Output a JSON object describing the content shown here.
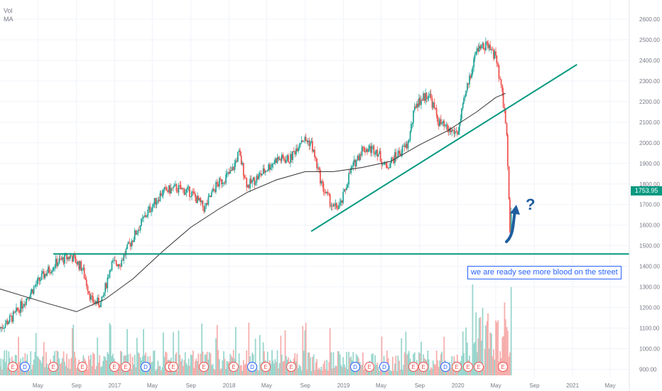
{
  "legend": {
    "line1": "Vol",
    "line2": "MA"
  },
  "last_price_label": "1753.95",
  "annotation": "we are ready see more blood on the street",
  "question_mark": "?",
  "colors": {
    "up": "#26a69a",
    "down": "#ef5350",
    "trendline": "#089981",
    "ma": "#333333",
    "annotation": "#2962ff",
    "arrow": "#1e5e9f"
  },
  "chart_data": {
    "type": "candlestick",
    "yaxis": {
      "ticks": [
        "2600.00",
        "2500.00",
        "2400.00",
        "2300.00",
        "2200.00",
        "2100.00",
        "2000.00",
        "1900.00",
        "1800.00",
        "1700.00",
        "1600.00",
        "1500.00",
        "1400.00",
        "1300.00",
        "1200.00",
        "1100.00",
        "1000.00",
        "900.00"
      ],
      "range": [
        880,
        2640
      ]
    },
    "xaxis": {
      "ticks": [
        "May",
        "Sep",
        "2017",
        "May",
        "Sep",
        "2018",
        "May",
        "Sep",
        "2019",
        "May",
        "Sep",
        "2020",
        "May",
        "Sep",
        "2021",
        "May"
      ],
      "range": [
        "2016-01",
        "2021-07"
      ]
    },
    "price_path": [
      {
        "x": "2016-01-01",
        "y": 1100
      },
      {
        "x": "2016-02-15",
        "y": 1160
      },
      {
        "x": "2016-04-01",
        "y": 1260
      },
      {
        "x": "2016-05-15",
        "y": 1350
      },
      {
        "x": "2016-07-01",
        "y": 1420
      },
      {
        "x": "2016-08-15",
        "y": 1450
      },
      {
        "x": "2016-09-20",
        "y": 1390
      },
      {
        "x": "2016-10-20",
        "y": 1230
      },
      {
        "x": "2016-11-20",
        "y": 1220
      },
      {
        "x": "2016-12-20",
        "y": 1410
      },
      {
        "x": "2017-01-20",
        "y": 1420
      },
      {
        "x": "2017-03-01",
        "y": 1540
      },
      {
        "x": "2017-04-15",
        "y": 1660
      },
      {
        "x": "2017-06-01",
        "y": 1760
      },
      {
        "x": "2017-07-15",
        "y": 1780
      },
      {
        "x": "2017-09-01",
        "y": 1760
      },
      {
        "x": "2017-10-15",
        "y": 1680
      },
      {
        "x": "2017-11-20",
        "y": 1790
      },
      {
        "x": "2018-01-10",
        "y": 1860
      },
      {
        "x": "2018-02-01",
        "y": 1950
      },
      {
        "x": "2018-03-01",
        "y": 1790
      },
      {
        "x": "2018-04-15",
        "y": 1850
      },
      {
        "x": "2018-06-01",
        "y": 1920
      },
      {
        "x": "2018-07-15",
        "y": 1920
      },
      {
        "x": "2018-08-20",
        "y": 2020
      },
      {
        "x": "2018-09-20",
        "y": 2000
      },
      {
        "x": "2018-10-25",
        "y": 1790
      },
      {
        "x": "2018-12-01",
        "y": 1680
      },
      {
        "x": "2018-12-25",
        "y": 1700
      },
      {
        "x": "2019-01-20",
        "y": 1850
      },
      {
        "x": "2019-03-01",
        "y": 1970
      },
      {
        "x": "2019-04-15",
        "y": 1970
      },
      {
        "x": "2019-05-15",
        "y": 1880
      },
      {
        "x": "2019-06-20",
        "y": 1940
      },
      {
        "x": "2019-07-25",
        "y": 1990
      },
      {
        "x": "2019-08-20",
        "y": 2190
      },
      {
        "x": "2019-10-01",
        "y": 2240
      },
      {
        "x": "2019-11-01",
        "y": 2100
      },
      {
        "x": "2019-12-01",
        "y": 2060
      },
      {
        "x": "2020-01-01",
        "y": 2050
      },
      {
        "x": "2020-02-01",
        "y": 2280
      },
      {
        "x": "2020-03-01",
        "y": 2450
      },
      {
        "x": "2020-04-01",
        "y": 2470
      },
      {
        "x": "2020-05-01",
        "y": 2420
      },
      {
        "x": "2020-05-25",
        "y": 2200
      },
      {
        "x": "2020-06-05",
        "y": 2050
      },
      {
        "x": "2020-06-15",
        "y": 1560
      },
      {
        "x": "2020-06-22",
        "y": 1754
      }
    ],
    "ma_path": [
      {
        "x": "2016-01-01",
        "y": 1290
      },
      {
        "x": "2016-06-01",
        "y": 1220
      },
      {
        "x": "2016-09-01",
        "y": 1180
      },
      {
        "x": "2016-12-01",
        "y": 1240
      },
      {
        "x": "2017-03-01",
        "y": 1340
      },
      {
        "x": "2017-06-01",
        "y": 1470
      },
      {
        "x": "2017-09-01",
        "y": 1590
      },
      {
        "x": "2017-12-01",
        "y": 1680
      },
      {
        "x": "2018-03-01",
        "y": 1760
      },
      {
        "x": "2018-06-01",
        "y": 1820
      },
      {
        "x": "2018-09-01",
        "y": 1860
      },
      {
        "x": "2018-12-01",
        "y": 1860
      },
      {
        "x": "2019-03-01",
        "y": 1880
      },
      {
        "x": "2019-06-01",
        "y": 1910
      },
      {
        "x": "2019-09-01",
        "y": 1990
      },
      {
        "x": "2019-12-01",
        "y": 2060
      },
      {
        "x": "2020-03-01",
        "y": 2150
      },
      {
        "x": "2020-05-01",
        "y": 2220
      },
      {
        "x": "2020-06-01",
        "y": 2240
      }
    ],
    "horizontal_line": {
      "y": 1460
    },
    "trendline": [
      {
        "x": "2018-09-20",
        "y": 1570
      },
      {
        "x": "2021-01-15",
        "y": 2380
      }
    ],
    "earnings_markers": [
      "E",
      "D",
      "E",
      "E",
      "E",
      "E",
      "D",
      "E",
      "E",
      "E",
      "E",
      "D",
      "E",
      "E",
      "D",
      "E",
      "D",
      "E",
      "E",
      "D",
      "E",
      "E",
      "E",
      "E"
    ]
  }
}
